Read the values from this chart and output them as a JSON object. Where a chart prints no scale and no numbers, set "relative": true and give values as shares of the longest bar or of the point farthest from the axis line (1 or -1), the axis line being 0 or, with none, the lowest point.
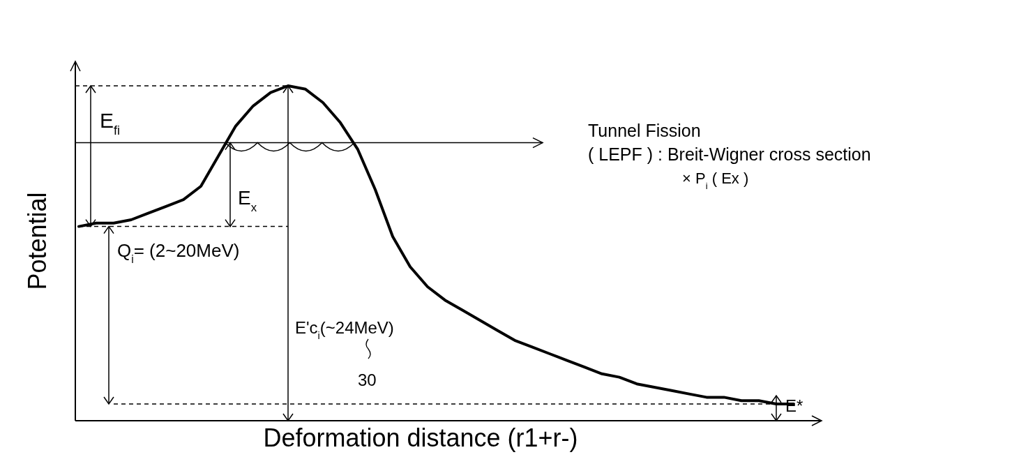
{
  "chart_data": {
    "type": "line",
    "relative": true,
    "xlabel": "Deformation distance (r1+r-)",
    "ylabel": "Potential",
    "categories": [
      null,
      null,
      null,
      null,
      null,
      null,
      null,
      null,
      null,
      null,
      null,
      null,
      null,
      null,
      null,
      null,
      null,
      null,
      null,
      null,
      null,
      null,
      null,
      null,
      null,
      null,
      null,
      null,
      null,
      null,
      null,
      null,
      null,
      null,
      null,
      null,
      null,
      null,
      null,
      null,
      null,
      null
    ],
    "series": [
      {
        "color": "#000000",
        "values": [
          0.58,
          0.59,
          0.59,
          0.6,
          0.62,
          0.64,
          0.66,
          0.7,
          0.79,
          0.88,
          0.94,
          0.98,
          1.0,
          0.99,
          0.95,
          0.89,
          0.81,
          0.69,
          0.55,
          0.46,
          0.4,
          0.36,
          0.33,
          0.3,
          0.27,
          0.24,
          0.22,
          0.2,
          0.18,
          0.16,
          0.14,
          0.13,
          0.11,
          0.1,
          0.09,
          0.08,
          0.07,
          0.07,
          0.06,
          0.06,
          0.05,
          0.05
        ]
      }
    ],
    "ref_lines": [
      {
        "axis": "y",
        "value": 1.0,
        "line_style": "dashed"
      },
      {
        "axis": "y",
        "value": 0.58,
        "line_style": "dashed"
      },
      {
        "axis": "y",
        "value": 0.05,
        "line_style": "dashed"
      },
      {
        "axis": "y",
        "value": 0.83,
        "line_style": "solid"
      }
    ],
    "annotations": [
      "E$_{fi}$",
      "E$_{x}$",
      "Tunnel Fission",
      "( LEPF ) : Breit-Wigner cross section",
      "× P$_{i}$ ( Ex )",
      "Q$_{i}$=  (2~20MeV)",
      "E'c$_{i}$(~24MeV)",
      "30",
      "E*"
    ]
  }
}
